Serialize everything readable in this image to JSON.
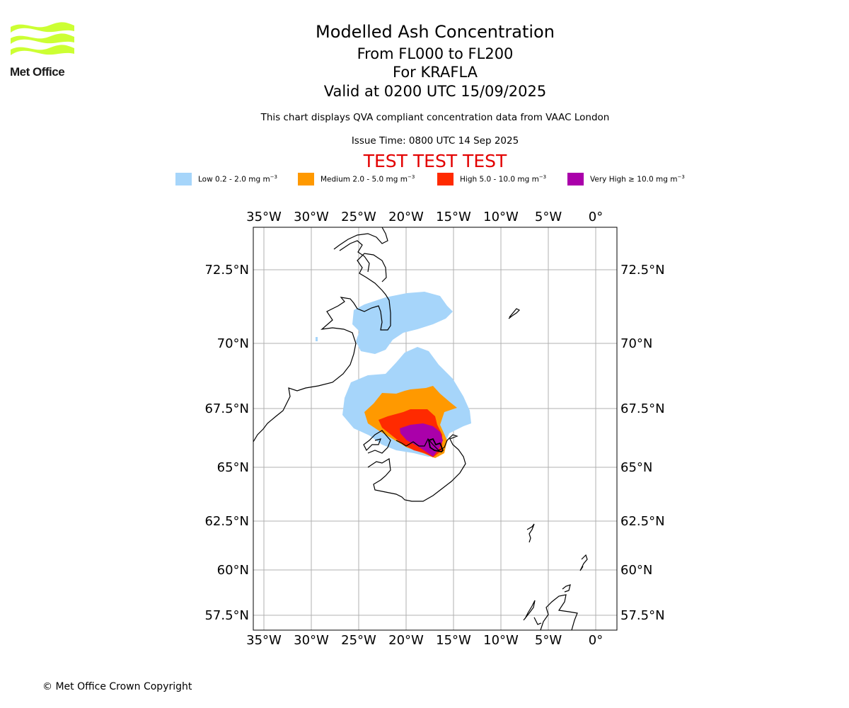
{
  "logo": {
    "text": "Met Office",
    "color": "#ccff33"
  },
  "titles": {
    "main": "Modelled Ash Concentration",
    "levels": "From FL000 to FL200",
    "volcano": "For KRAFLA",
    "valid": "Valid at 0200 UTC 15/09/2025",
    "subtitle": "This chart displays QVA compliant concentration data from VAAC London",
    "issue": "Issue Time: 0800 UTC 14 Sep 2025",
    "test": "TEST TEST TEST"
  },
  "legend": [
    {
      "label": "Low 0.2 - 2.0 mg m",
      "color": "#a6d5fa"
    },
    {
      "label": "Medium 2.0 - 5.0 mg m",
      "color": "#ff9900"
    },
    {
      "label": "High 5.0 - 10.0 mg m",
      "color": "#ff2a00"
    },
    {
      "label": "Very High ≥ 10.0 mg m",
      "color": "#aa00aa"
    }
  ],
  "legend_unit_exponent": "−3",
  "map": {
    "lon_range": [
      -36,
      2.4
    ],
    "lat_range": [
      56.5,
      74.5
    ],
    "lon_ticks": [
      "35°W",
      "30°W",
      "25°W",
      "20°W",
      "15°W",
      "10°W",
      "5°W",
      "0°"
    ],
    "lat_ticks": [
      "72.5°N",
      "70°N",
      "67.5°N",
      "65°N",
      "62.5°N",
      "60°N",
      "57.5°N"
    ],
    "grid_color": "#b0b0b0"
  },
  "copyright": "© Met Office Crown Copyright"
}
